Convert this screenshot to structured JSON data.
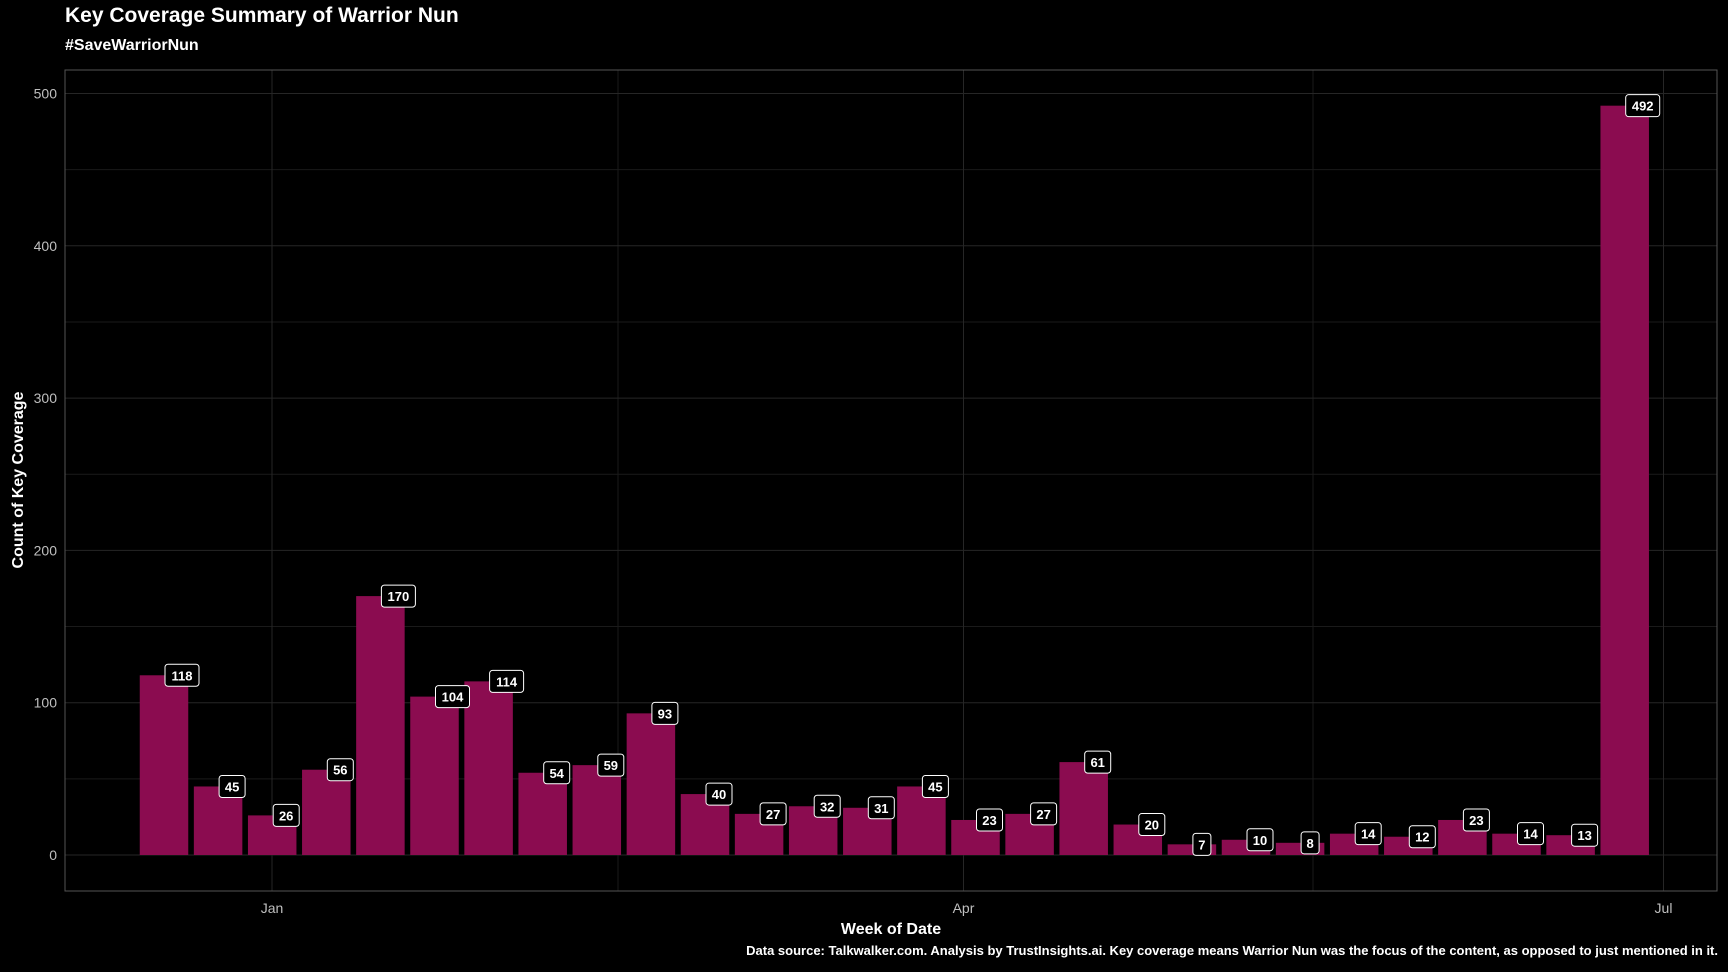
{
  "title": "Key Coverage Summary of Warrior Nun",
  "subtitle": "#SaveWarriorNun",
  "caption": "Data source: Talkwalker.com. Analysis by TrustInsights.ai. Key coverage means Warrior Nun was the focus of the content, as opposed to just mentioned in it.",
  "colors": {
    "background": "#000000",
    "bar": "#8b0c50",
    "grid": "#262626",
    "panel_border": "#555555",
    "label_border": "#ffffff"
  },
  "chart_data": {
    "type": "bar",
    "title": "Key Coverage Summary of Warrior Nun",
    "subtitle": "#SaveWarriorNun",
    "xlabel": "Week of Date",
    "ylabel": "Count of Key Coverage",
    "x_ticks": [
      "Jan",
      "Apr",
      "Jul"
    ],
    "y_ticks": [
      0,
      100,
      200,
      300,
      400,
      500
    ],
    "ylim": [
      -24,
      516
    ],
    "grid": true,
    "legend": "none",
    "values": [
      118,
      45,
      26,
      56,
      170,
      104,
      114,
      54,
      59,
      93,
      40,
      27,
      32,
      31,
      45,
      23,
      27,
      61,
      20,
      7,
      10,
      8,
      14,
      12,
      23,
      14,
      13,
      492
    ]
  }
}
